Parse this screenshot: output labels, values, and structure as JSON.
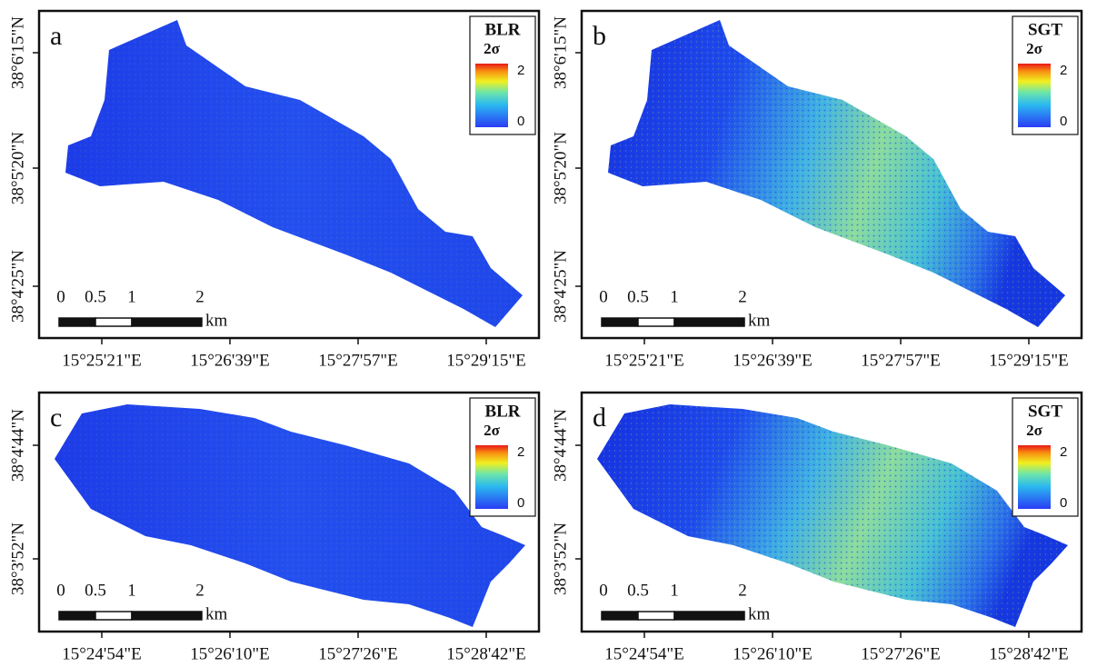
{
  "panels": [
    {
      "letter": "a",
      "legend_title": "BLR",
      "legend_subtitle": "2σ",
      "legend_ticks": [
        "2",
        "0"
      ],
      "scale_labels": [
        "0",
        "0.5",
        "1",
        "2"
      ],
      "scale_unit": "km",
      "x_labels": [
        "15°25'21\"E",
        "15°26'39\"E",
        "15°27'57\"E",
        "15°29'15\"E"
      ],
      "y_labels": [
        "38°6'15\"N",
        "38°5'20\"N",
        "38°4'25\"N"
      ]
    },
    {
      "letter": "b",
      "legend_title": "SGT",
      "legend_subtitle": "2σ",
      "legend_ticks": [
        "2",
        "0"
      ],
      "scale_labels": [
        "0",
        "0.5",
        "1",
        "2"
      ],
      "scale_unit": "km",
      "x_labels": [
        "15°25'21\"E",
        "15°26'39\"E",
        "15°27'57\"E",
        "15°29'15\"E"
      ],
      "y_labels": [
        "38°6'15\"N",
        "38°5'20\"N",
        "38°4'25\"N"
      ]
    },
    {
      "letter": "c",
      "legend_title": "BLR",
      "legend_subtitle": "2σ",
      "legend_ticks": [
        "2",
        "0"
      ],
      "scale_labels": [
        "0",
        "0.5",
        "1",
        "2"
      ],
      "scale_unit": "km",
      "x_labels": [
        "15°24'54\"E",
        "15°26'10\"E",
        "15°27'26\"E",
        "15°28'42\"E"
      ],
      "y_labels": [
        "38°4'44\"N",
        "38°3'52\"N"
      ]
    },
    {
      "letter": "d",
      "legend_title": "SGT",
      "legend_subtitle": "2σ",
      "legend_ticks": [
        "2",
        "0"
      ],
      "scale_labels": [
        "0",
        "0.5",
        "1",
        "2"
      ],
      "scale_unit": "km",
      "x_labels": [
        "15°24'54\"E",
        "15°26'10\"E",
        "15°27'26\"E",
        "15°28'42\"E"
      ],
      "y_labels": [
        "38°4'44\"N",
        "38°3'52\"N"
      ]
    }
  ]
}
